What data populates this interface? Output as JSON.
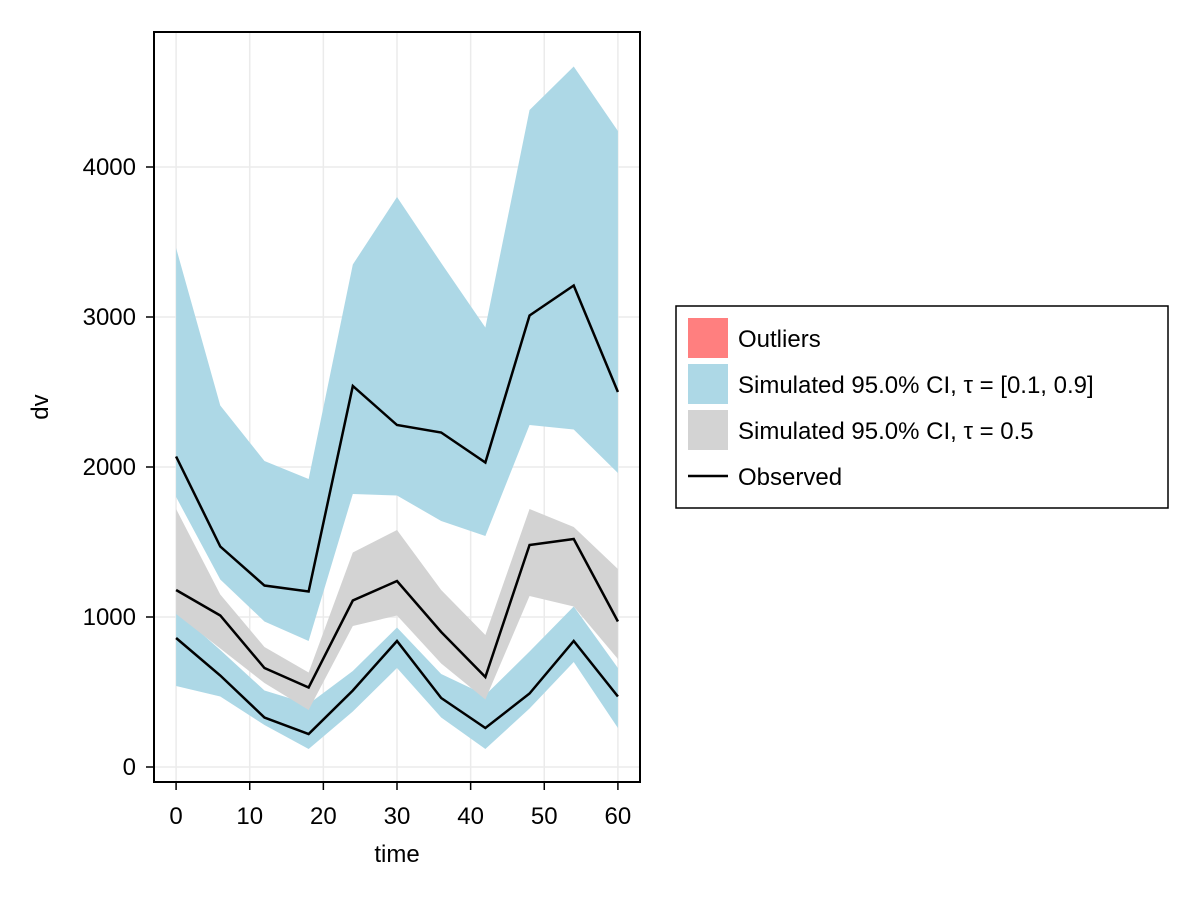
{
  "chart_data": {
    "type": "area",
    "xlabel": "time",
    "ylabel": "dv",
    "xlim": [
      -3,
      63
    ],
    "ylim": [
      -100,
      4900
    ],
    "xticks": [
      0,
      10,
      20,
      30,
      40,
      50,
      60
    ],
    "yticks": [
      0,
      1000,
      2000,
      3000,
      4000
    ],
    "grid": true,
    "legend_position": "right",
    "x": [
      0,
      6,
      12,
      18,
      24,
      30,
      36,
      42,
      48,
      54,
      60
    ],
    "bands": [
      {
        "name": "Simulated 95.0% CI, τ = [0.1, 0.9]",
        "color": "#add8e6",
        "upper": [
          3460,
          2410,
          2040,
          1920,
          3350,
          3800,
          3360,
          2930,
          4380,
          4670,
          4240
        ],
        "lower": [
          1800,
          1250,
          970,
          840,
          1820,
          1810,
          1640,
          1540,
          2280,
          2250,
          1960
        ]
      },
      {
        "name": "Simulated 95.0% CI, τ = [0.1, 0.9]",
        "color": "#add8e6",
        "upper": [
          1040,
          780,
          510,
          420,
          640,
          930,
          620,
          480,
          770,
          1070,
          660
        ],
        "lower": [
          540,
          470,
          280,
          120,
          370,
          660,
          330,
          120,
          390,
          700,
          260
        ]
      },
      {
        "name": "Simulated 95.0% CI, τ = 0.5",
        "color": "#d3d3d3",
        "upper": [
          1720,
          1150,
          800,
          630,
          1430,
          1580,
          1180,
          880,
          1720,
          1600,
          1320
        ],
        "lower": [
          1020,
          790,
          560,
          380,
          940,
          1010,
          690,
          450,
          1140,
          1070,
          720
        ]
      }
    ],
    "series": [
      {
        "name": "Observed",
        "color": "#000000",
        "values": [
          2070,
          1470,
          1210,
          1170,
          2540,
          2280,
          2230,
          2030,
          3010,
          3210,
          2500
        ]
      },
      {
        "name": "Observed",
        "color": "#000000",
        "values": [
          1180,
          1010,
          660,
          530,
          1110,
          1240,
          900,
          600,
          1480,
          1520,
          970
        ]
      },
      {
        "name": "Observed",
        "color": "#000000",
        "values": [
          860,
          610,
          330,
          220,
          510,
          840,
          460,
          260,
          490,
          840,
          470
        ]
      }
    ],
    "legend": [
      {
        "label": "Outliers",
        "kind": "patch",
        "color": "#ff7f7f"
      },
      {
        "label": "Simulated 95.0% CI, τ = [0.1, 0.9]",
        "kind": "patch",
        "color": "#add8e6"
      },
      {
        "label": "Simulated 95.0% CI, τ = 0.5",
        "kind": "patch",
        "color": "#d3d3d3"
      },
      {
        "label": "Observed",
        "kind": "line",
        "color": "#000000"
      }
    ]
  }
}
